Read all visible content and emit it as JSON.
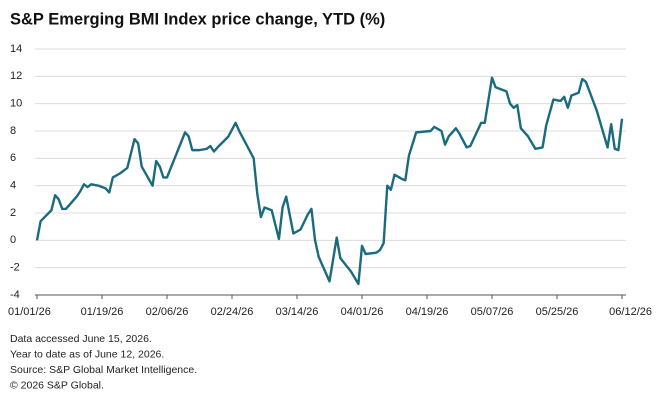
{
  "chart_data": {
    "type": "line",
    "title": "S&P Emerging BMI Index price change, YTD (%)",
    "x": [
      "01/01/26",
      "01/02/26",
      "01/05/26",
      "01/06/26",
      "01/07/26",
      "01/08/26",
      "01/09/26",
      "01/12/26",
      "01/13/26",
      "01/14/26",
      "01/15/26",
      "01/16/26",
      "01/18/26",
      "01/20/26",
      "01/21/26",
      "01/22/26",
      "01/24/26",
      "01/26/26",
      "01/28/26",
      "01/29/26",
      "01/30/26",
      "02/02/26",
      "02/03/26",
      "02/04/26",
      "02/05/26",
      "02/06/26",
      "02/11/26",
      "02/12/26",
      "02/13/26",
      "02/15/26",
      "02/17/26",
      "02/18/26",
      "02/19/26",
      "02/20/26",
      "02/23/26",
      "02/25/26",
      "02/26/26",
      "03/02/26",
      "03/03/26",
      "03/04/26",
      "03/05/26",
      "03/07/26",
      "03/09/26",
      "03/10/26",
      "03/11/26",
      "03/13/26",
      "03/15/26",
      "03/17/26",
      "03/18/26",
      "03/19/26",
      "03/20/26",
      "03/23/26",
      "03/25/26",
      "03/26/26",
      "03/29/26",
      "03/31/26",
      "04/01/26",
      "04/02/26",
      "04/05/26",
      "04/06/26",
      "04/07/26",
      "04/08/26",
      "04/09/26",
      "04/10/26",
      "04/12/26",
      "04/13/26",
      "04/14/26",
      "04/16/26",
      "04/20/26",
      "04/21/26",
      "04/23/26",
      "04/24/26",
      "04/25/26",
      "04/27/26",
      "04/28/26",
      "04/30/26",
      "05/01/26",
      "05/04/26",
      "05/05/26",
      "05/07/26",
      "05/08/26",
      "05/11/26",
      "05/12/26",
      "05/13/26",
      "05/14/26",
      "05/15/26",
      "05/17/26",
      "05/19/26",
      "05/21/26",
      "05/22/26",
      "05/24/26",
      "05/26/26",
      "05/27/26",
      "05/28/26",
      "05/29/26",
      "05/31/26",
      "06/01/26",
      "06/02/26",
      "06/05/26",
      "06/08/26",
      "06/09/26",
      "06/10/26",
      "06/11/26",
      "06/12/26"
    ],
    "series": [
      {
        "name": "S&P Emerging BMI",
        "color": "#1b6b7f",
        "values": [
          0,
          1.4,
          2.2,
          3.3,
          3.0,
          2.3,
          2.3,
          3.2,
          3.6,
          4.1,
          3.9,
          4.1,
          4.0,
          3.8,
          3.5,
          4.6,
          4.9,
          5.3,
          7.4,
          7.1,
          5.4,
          4.0,
          5.8,
          5.4,
          4.6,
          4.6,
          7.9,
          7.6,
          6.6,
          6.6,
          6.7,
          6.9,
          6.5,
          6.8,
          7.6,
          8.6,
          8.0,
          6.0,
          3.4,
          1.7,
          2.4,
          2.2,
          0.1,
          2.4,
          3.2,
          0.5,
          0.8,
          1.9,
          2.3,
          0.0,
          -1.2,
          -3.0,
          0.2,
          -1.3,
          -2.3,
          -3.2,
          -0.4,
          -1.0,
          -0.9,
          -0.7,
          -0.2,
          4.0,
          3.7,
          4.8,
          4.5,
          4.4,
          6.2,
          7.9,
          8.0,
          8.3,
          8.0,
          7.0,
          7.6,
          8.2,
          7.8,
          6.8,
          6.9,
          8.6,
          8.6,
          11.9,
          11.2,
          10.9,
          10.0,
          9.7,
          9.9,
          8.2,
          7.6,
          6.7,
          6.8,
          8.4,
          10.3,
          10.2,
          10.5,
          9.7,
          10.6,
          10.8,
          11.8,
          11.6,
          9.5,
          6.8,
          8.5,
          6.7,
          6.6,
          8.9
        ]
      }
    ],
    "xlim": [
      "01/01/26",
      "06/12/26"
    ],
    "xticks": [
      "01/01/26",
      "01/19/26",
      "02/06/26",
      "02/24/26",
      "03/14/26",
      "04/01/26",
      "04/19/26",
      "05/07/26",
      "05/25/26",
      "06/12/26"
    ],
    "ylim": [
      -4,
      14
    ],
    "yticks": [
      -4,
      -2,
      0,
      2,
      4,
      6,
      8,
      10,
      12,
      14
    ],
    "grid": true,
    "notes": [
      "Data accessed June 15, 2026.",
      "Year to date as of June 12, 2026.",
      "Source: S&P Global Market Intelligence.",
      "© 2026 S&P Global."
    ]
  }
}
